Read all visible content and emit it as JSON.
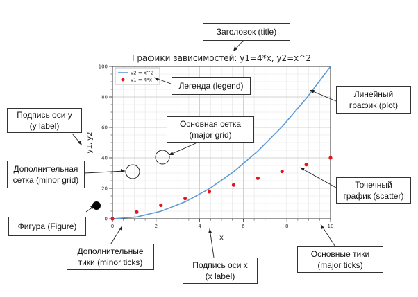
{
  "callouts": {
    "title": "Заголовок (title)",
    "legend": "Легенда (legend)",
    "line_plot": "Линейный\nграфик (plot)",
    "ylabel": "Подпись оси y\n(y label)",
    "major_grid": "Основная сетка\n(major grid)",
    "minor_grid": "Дополнительная\nсетка (minor grid)",
    "scatter": "Точечный\nграфик (scatter)",
    "figure": "Фигура (Figure)",
    "minor_ticks": "Дополнительные\nтики (minor ticks)",
    "xlabel": "Подпись оси x\n(x label)",
    "major_ticks": "Основные тики\n(major ticks)"
  },
  "colors": {
    "line": "#5b9bd5",
    "scatter": "#e8141b",
    "grid": "#c8c8c8",
    "axes": "#333333"
  },
  "chart_data": {
    "type": "line",
    "title": "Графики зависимостей: y1=4*x, y2=x^2",
    "xlabel": "x",
    "ylabel": "y1, y2",
    "xlim": [
      0,
      10
    ],
    "ylim": [
      0,
      100
    ],
    "x_ticks": [
      "0",
      "2",
      "4",
      "6",
      "8",
      "10"
    ],
    "y_ticks": [
      "0",
      "20",
      "40",
      "60",
      "80",
      "100"
    ],
    "grid": "major and minor",
    "legend_position": "top-left",
    "series": [
      {
        "name": "y2 = x^2",
        "kind": "line",
        "x": [
          0,
          1.111,
          2.222,
          3.333,
          4.444,
          5.556,
          6.667,
          7.778,
          8.889,
          10
        ],
        "y": [
          0,
          1.23,
          4.94,
          11.11,
          19.75,
          30.86,
          44.44,
          60.49,
          79.01,
          100
        ]
      },
      {
        "name": "y1 = 4*x",
        "kind": "scatter",
        "x": [
          0,
          1.111,
          2.222,
          3.333,
          4.444,
          5.556,
          6.667,
          7.778,
          8.889,
          10
        ],
        "y": [
          0,
          4.44,
          8.89,
          13.33,
          17.78,
          22.22,
          26.67,
          31.11,
          35.56,
          40
        ]
      }
    ]
  }
}
